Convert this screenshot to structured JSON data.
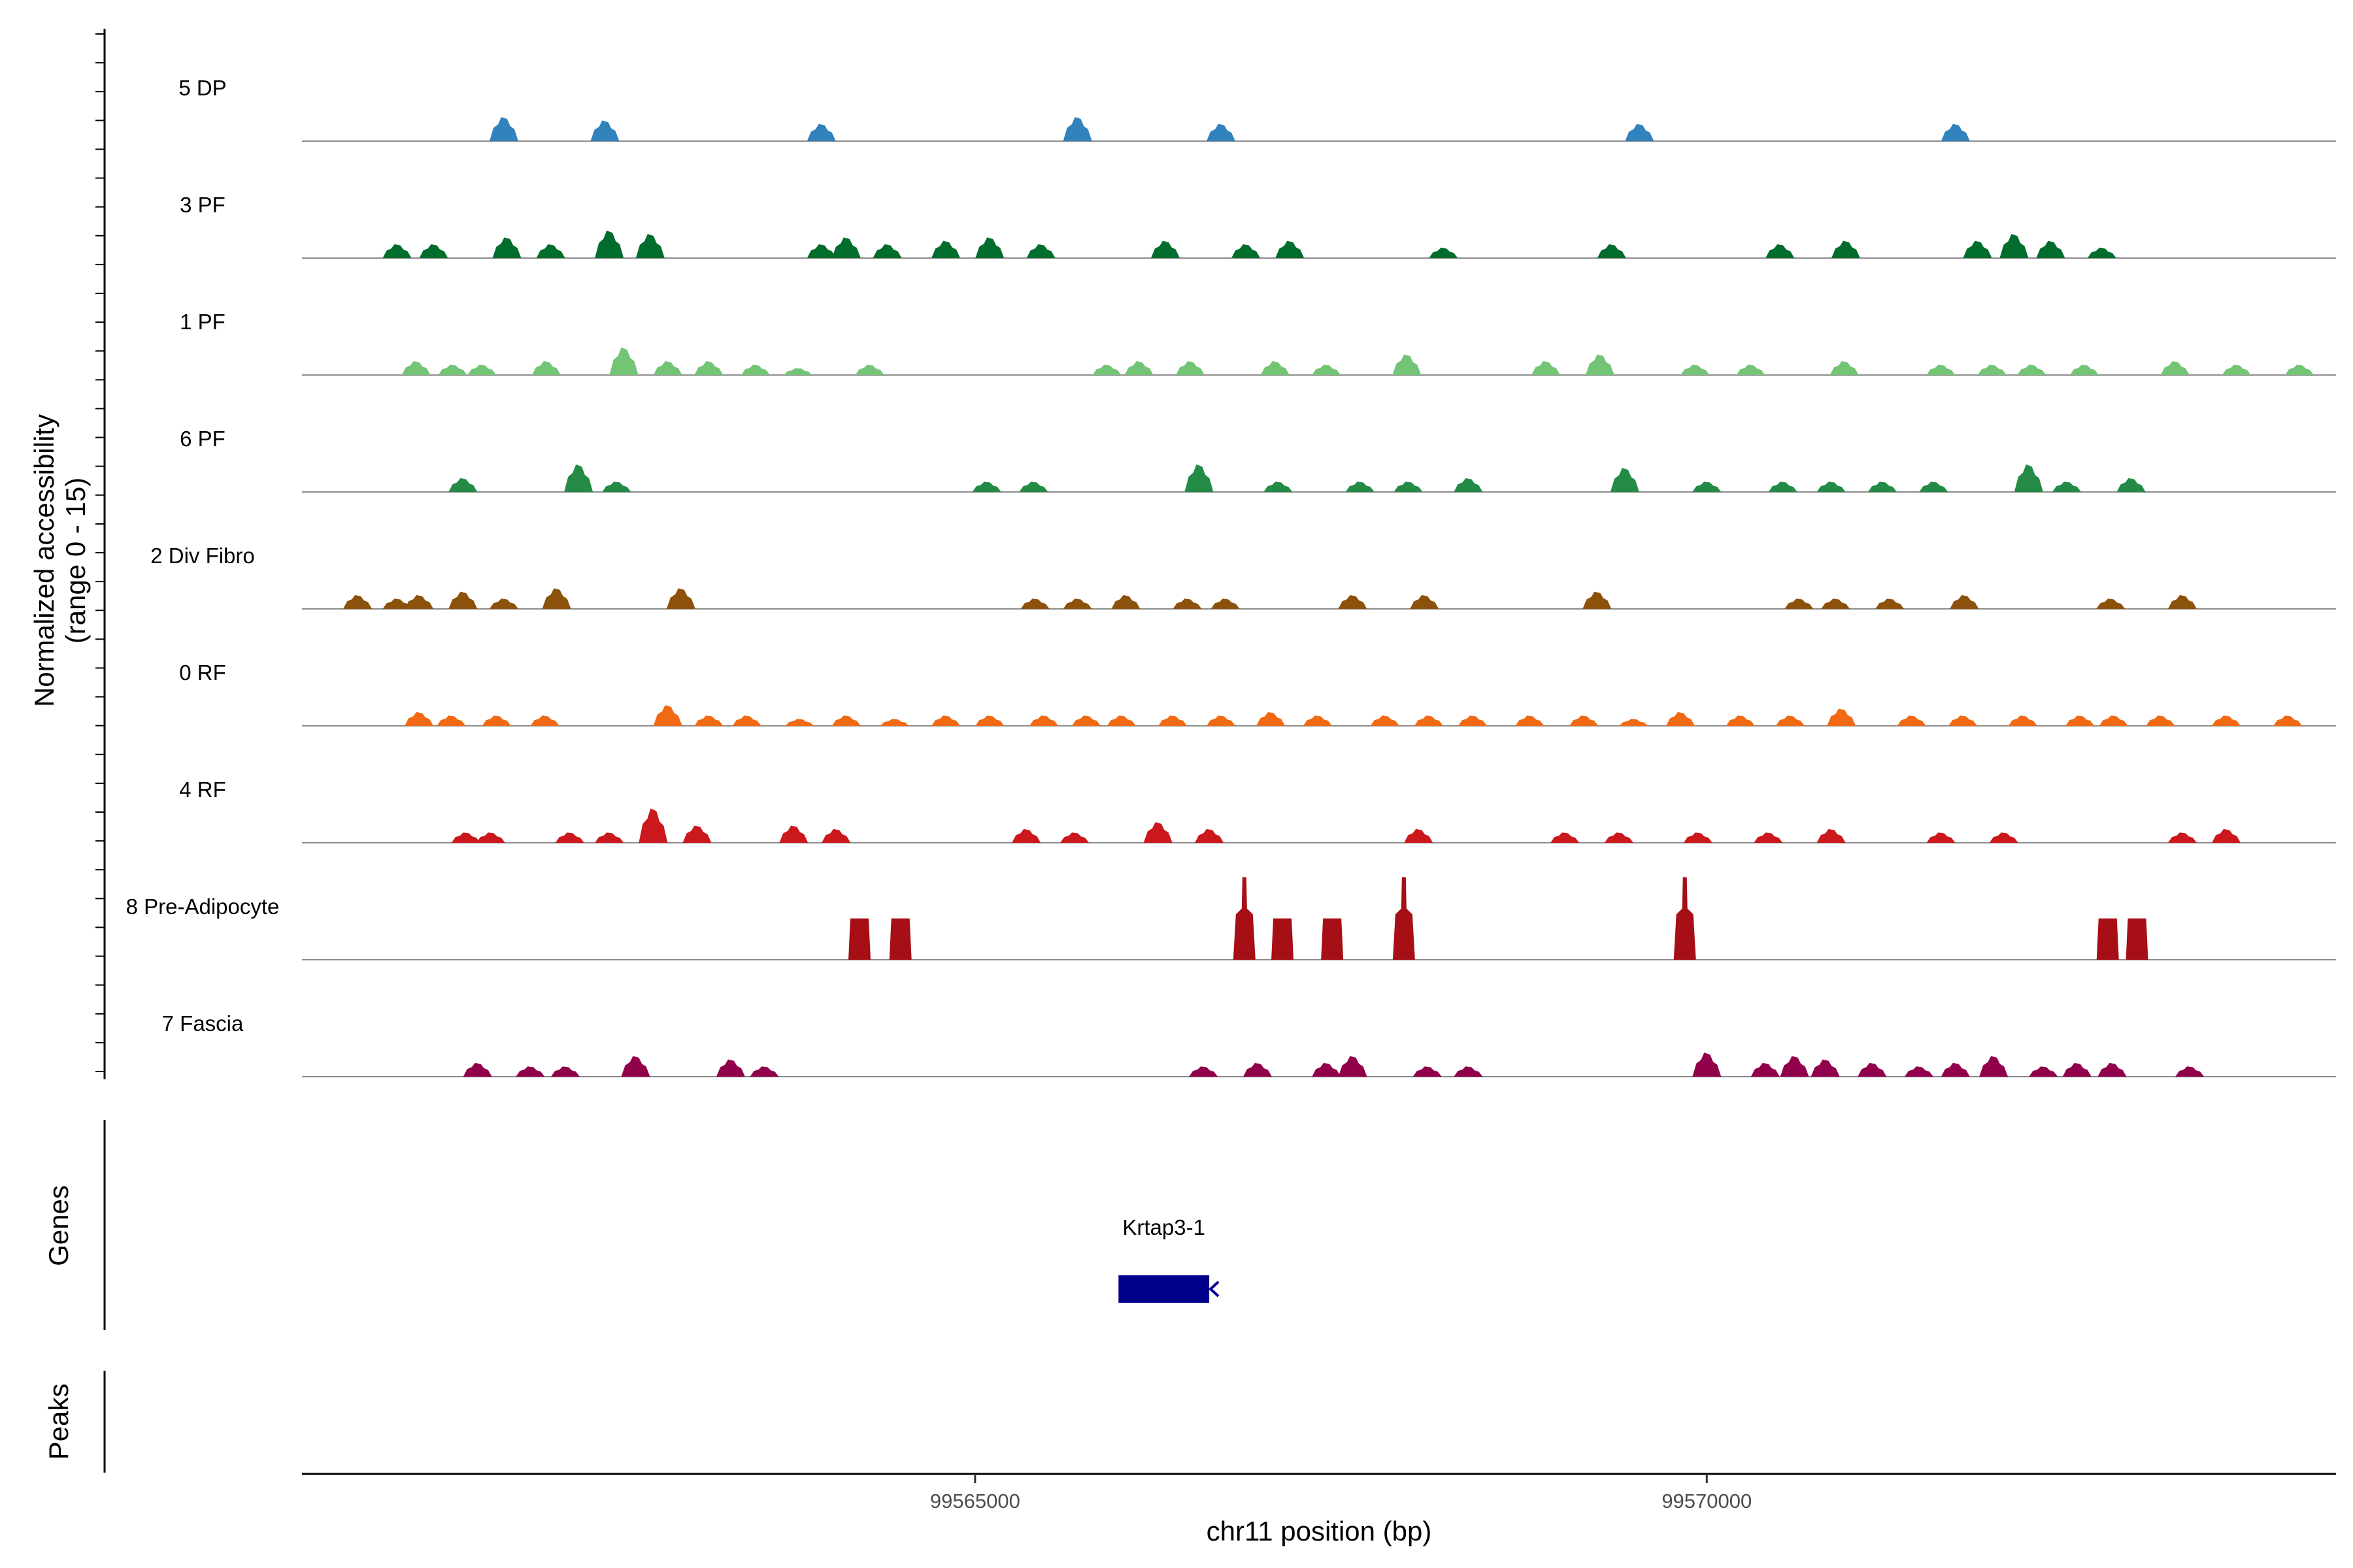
{
  "chart_data": {
    "type": "area",
    "y_axis_label_line1": "Normalized accessibility",
    "y_axis_label_line2": "(range 0 - 15)",
    "y_range": [
      0,
      15
    ],
    "x_axis_label": "chr11 position (bp)",
    "x_range": [
      99560400,
      99574300
    ],
    "x_ticks": [
      99565000,
      99570000
    ],
    "x_tick_labels": [
      "99565000",
      "99570000"
    ],
    "genes_panel_label": "Genes",
    "peaks_panel_label": "Peaks",
    "genes": [
      {
        "name": "Krtap3-1",
        "start": 99565980,
        "end": 99566600,
        "strand": "-",
        "color": "#00008b"
      }
    ],
    "tracks": [
      {
        "name": "5 DP",
        "color": "#3182bd",
        "peaks": [
          [
            99561780,
            3.5
          ],
          [
            99562470,
            3
          ],
          [
            99563950,
            2.5
          ],
          [
            99565700,
            3.5
          ],
          [
            99566680,
            2.5
          ],
          [
            99569540,
            2.5
          ],
          [
            99571700,
            2.5
          ]
        ]
      },
      {
        "name": "3 PF",
        "color": "#006d2c",
        "peaks": [
          [
            99561050,
            2
          ],
          [
            99561300,
            2
          ],
          [
            99561800,
            3
          ],
          [
            99562100,
            2
          ],
          [
            99562500,
            4
          ],
          [
            99562780,
            3.5
          ],
          [
            99563950,
            2
          ],
          [
            99564120,
            3
          ],
          [
            99564400,
            2
          ],
          [
            99564800,
            2.5
          ],
          [
            99565100,
            3
          ],
          [
            99565450,
            2
          ],
          [
            99566300,
            2.5
          ],
          [
            99566850,
            2
          ],
          [
            99567150,
            2.5
          ],
          [
            99568200,
            1.5
          ],
          [
            99569350,
            2
          ],
          [
            99570500,
            2
          ],
          [
            99570950,
            2.5
          ],
          [
            99571850,
            2.5
          ],
          [
            99572100,
            3.5
          ],
          [
            99572350,
            2.5
          ],
          [
            99572700,
            1.5
          ]
        ]
      },
      {
        "name": "1 PF",
        "color": "#74c476",
        "peaks": [
          [
            99561180,
            2
          ],
          [
            99561430,
            1.5
          ],
          [
            99561630,
            1.5
          ],
          [
            99562070,
            2
          ],
          [
            99562600,
            4
          ],
          [
            99562900,
            2
          ],
          [
            99563180,
            2
          ],
          [
            99563500,
            1.5
          ],
          [
            99563790,
            1
          ],
          [
            99564280,
            1.5
          ],
          [
            99565900,
            1.5
          ],
          [
            99566120,
            2
          ],
          [
            99566470,
            2
          ],
          [
            99567050,
            2
          ],
          [
            99567400,
            1.5
          ],
          [
            99567950,
            3
          ],
          [
            99568900,
            2
          ],
          [
            99569270,
            3
          ],
          [
            99569920,
            1.5
          ],
          [
            99570300,
            1.5
          ],
          [
            99570940,
            2
          ],
          [
            99571600,
            1.5
          ],
          [
            99571950,
            1.5
          ],
          [
            99572220,
            1.5
          ],
          [
            99572580,
            1.5
          ],
          [
            99573200,
            2
          ],
          [
            99573620,
            1.5
          ],
          [
            99574050,
            1.5
          ]
        ]
      },
      {
        "name": "6 PF",
        "color": "#238b45",
        "peaks": [
          [
            99561500,
            2
          ],
          [
            99562290,
            4
          ],
          [
            99562550,
            1.5
          ],
          [
            99565080,
            1.5
          ],
          [
            99565400,
            1.5
          ],
          [
            99566530,
            4
          ],
          [
            99567070,
            1.5
          ],
          [
            99567630,
            1.5
          ],
          [
            99567960,
            1.5
          ],
          [
            99568370,
            2
          ],
          [
            99569440,
            3.5
          ],
          [
            99570000,
            1.5
          ],
          [
            99570520,
            1.5
          ],
          [
            99570850,
            1.5
          ],
          [
            99571200,
            1.5
          ],
          [
            99571550,
            1.5
          ],
          [
            99572200,
            4
          ],
          [
            99572460,
            1.5
          ],
          [
            99572900,
            2
          ]
        ]
      },
      {
        "name": "2 Div Fibro",
        "color": "#8c510a",
        "peaks": [
          [
            99560780,
            2
          ],
          [
            99561050,
            1.5
          ],
          [
            99561200,
            2
          ],
          [
            99561500,
            2.5
          ],
          [
            99561780,
            1.5
          ],
          [
            99562140,
            3
          ],
          [
            99562990,
            3
          ],
          [
            99565410,
            1.5
          ],
          [
            99565700,
            1.5
          ],
          [
            99566030,
            2
          ],
          [
            99566450,
            1.5
          ],
          [
            99566710,
            1.5
          ],
          [
            99567580,
            2
          ],
          [
            99568070,
            2
          ],
          [
            99569250,
            2.5
          ],
          [
            99570630,
            1.5
          ],
          [
            99570880,
            1.5
          ],
          [
            99571250,
            1.5
          ],
          [
            99571760,
            2
          ],
          [
            99572760,
            1.5
          ],
          [
            99573250,
            2
          ]
        ]
      },
      {
        "name": "0 RF",
        "color": "#f16913",
        "peaks": [
          [
            99561200,
            2
          ],
          [
            99561420,
            1.5
          ],
          [
            99561730,
            1.5
          ],
          [
            99562060,
            1.5
          ],
          [
            99562900,
            3
          ],
          [
            99563180,
            1.5
          ],
          [
            99563440,
            1.5
          ],
          [
            99563800,
            1
          ],
          [
            99564120,
            1.5
          ],
          [
            99564450,
            1
          ],
          [
            99564800,
            1.5
          ],
          [
            99565100,
            1.5
          ],
          [
            99565470,
            1.5
          ],
          [
            99565760,
            1.5
          ],
          [
            99566000,
            1.5
          ],
          [
            99566350,
            1.5
          ],
          [
            99566680,
            1.5
          ],
          [
            99567020,
            2
          ],
          [
            99567340,
            1.5
          ],
          [
            99567800,
            1.5
          ],
          [
            99568100,
            1.5
          ],
          [
            99568400,
            1.5
          ],
          [
            99568790,
            1.5
          ],
          [
            99569160,
            1.5
          ],
          [
            99569500,
            1
          ],
          [
            99569820,
            2
          ],
          [
            99570230,
            1.5
          ],
          [
            99570570,
            1.5
          ],
          [
            99570920,
            2.5
          ],
          [
            99571400,
            1.5
          ],
          [
            99571750,
            1.5
          ],
          [
            99572160,
            1.5
          ],
          [
            99572550,
            1.5
          ],
          [
            99572780,
            1.5
          ],
          [
            99573100,
            1.5
          ],
          [
            99573550,
            1.5
          ],
          [
            99573970,
            1.5
          ]
        ]
      },
      {
        "name": "4 RF",
        "color": "#cb181d",
        "peaks": [
          [
            99561520,
            1.5
          ],
          [
            99561690,
            1.5
          ],
          [
            99562230,
            1.5
          ],
          [
            99562500,
            1.5
          ],
          [
            99562800,
            5
          ],
          [
            99563100,
            2.5
          ],
          [
            99563760,
            2.5
          ],
          [
            99564050,
            2
          ],
          [
            99565350,
            2
          ],
          [
            99565680,
            1.5
          ],
          [
            99566250,
            3
          ],
          [
            99566600,
            2
          ],
          [
            99568030,
            2
          ],
          [
            99569030,
            1.5
          ],
          [
            99569400,
            1.5
          ],
          [
            99569940,
            1.5
          ],
          [
            99570420,
            1.5
          ],
          [
            99570850,
            2
          ],
          [
            99571600,
            1.5
          ],
          [
            99572030,
            1.5
          ],
          [
            99573250,
            1.5
          ],
          [
            99573550,
            2
          ]
        ]
      },
      {
        "name": "8 Pre-Adipocyte",
        "color": "#a50f15",
        "peaks": [
          [
            99564210,
            6
          ],
          [
            99564490,
            6
          ],
          [
            99566840,
            12
          ],
          [
            99567100,
            6
          ],
          [
            99567440,
            6
          ],
          [
            99567930,
            12
          ],
          [
            99569850,
            12
          ],
          [
            99572740,
            6
          ],
          [
            99572940,
            6
          ]
        ]
      },
      {
        "name": "7 Fascia",
        "color": "#91004b",
        "peaks": [
          [
            99561600,
            2
          ],
          [
            99561960,
            1.5
          ],
          [
            99562200,
            1.5
          ],
          [
            99562680,
            3
          ],
          [
            99563330,
            2.5
          ],
          [
            99563560,
            1.5
          ],
          [
            99566560,
            1.5
          ],
          [
            99566930,
            2
          ],
          [
            99567400,
            2
          ],
          [
            99567580,
            3
          ],
          [
            99568090,
            1.5
          ],
          [
            99568370,
            1.5
          ],
          [
            99570000,
            3.5
          ],
          [
            99570400,
            2
          ],
          [
            99570600,
            3
          ],
          [
            99570810,
            2.5
          ],
          [
            99571130,
            2
          ],
          [
            99571450,
            1.5
          ],
          [
            99571700,
            2
          ],
          [
            99571960,
            3
          ],
          [
            99572300,
            1.5
          ],
          [
            99572530,
            2
          ],
          [
            99572770,
            2
          ],
          [
            99573300,
            1.5
          ]
        ]
      }
    ]
  }
}
